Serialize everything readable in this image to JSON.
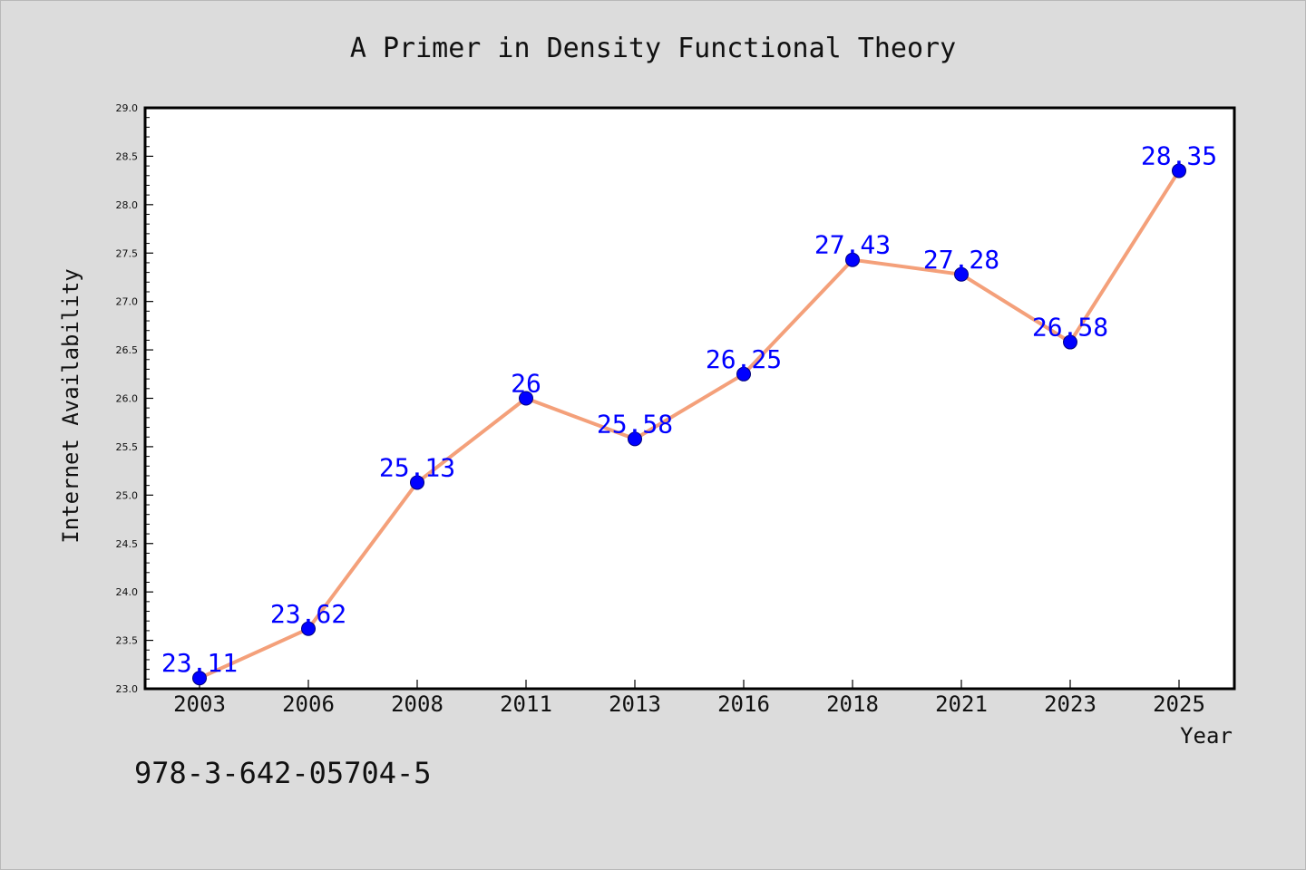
{
  "chart_data": {
    "type": "line",
    "title": "A Primer in Density Functional Theory",
    "xlabel": "Year",
    "ylabel": "Internet Availability",
    "categories": [
      "2003",
      "2006",
      "2008",
      "2011",
      "2013",
      "2016",
      "2018",
      "2021",
      "2023",
      "2025"
    ],
    "series": [
      {
        "values": [
          23.11,
          23.62,
          25.13,
          26,
          25.58,
          26.25,
          27.43,
          27.28,
          26.58,
          28.35
        ]
      }
    ],
    "data_labels": [
      "23.11",
      "23.62",
      "25.13",
      "26",
      "25.58",
      "26.25",
      "27.43",
      "27.28",
      "26.58",
      "28.35"
    ],
    "ylim": [
      23.0,
      29.0
    ],
    "yticks": [
      "23.0",
      "23.5",
      "24.0",
      "24.5",
      "25.0",
      "25.5",
      "26.0",
      "26.5",
      "27.0",
      "27.5",
      "28.0",
      "28.5",
      "29.0"
    ],
    "grid": false,
    "colors": {
      "line": "#f4a07a",
      "marker": "#0000ff",
      "label": "#0000ff"
    }
  },
  "footer": {
    "isbn": "978-3-642-05704-5"
  }
}
